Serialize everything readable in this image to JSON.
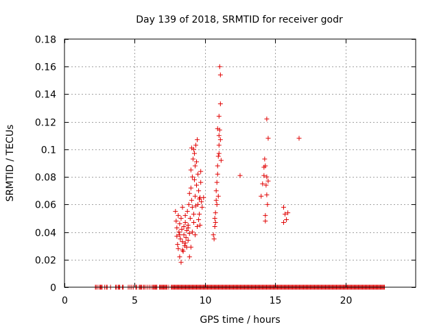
{
  "chart_data": {
    "type": "scatter",
    "title": "Day 139 of 2018, SRMTID for receiver godr",
    "xlabel": "GPS time / hours",
    "ylabel": "SRMTID / TECUs",
    "xlim": [
      0,
      25
    ],
    "ylim": [
      0,
      0.18
    ],
    "xticks": [
      0,
      5,
      10,
      15,
      20
    ],
    "xtick_labels": [
      "0",
      "5",
      "10",
      "15",
      "20"
    ],
    "yticks": [
      0,
      0.02,
      0.04,
      0.06,
      0.08,
      0.1,
      0.12,
      0.14,
      0.16,
      0.18
    ],
    "ytick_labels": [
      "0",
      "0.02",
      "0.04",
      "0.06",
      "0.08",
      "0.1",
      "0.12",
      "0.14",
      "0.16",
      "0.18"
    ],
    "grid": true,
    "marker": "+",
    "color": "#e00000",
    "zero_band": {
      "x_start": 2.2,
      "x_end": 22.8,
      "y": 0
    },
    "series": [
      {
        "name": "SRMTID",
        "points": [
          [
            7.9,
            0.055
          ],
          [
            7.95,
            0.048
          ],
          [
            8.0,
            0.043
          ],
          [
            8.0,
            0.037
          ],
          [
            8.05,
            0.031
          ],
          [
            8.1,
            0.052
          ],
          [
            8.1,
            0.028
          ],
          [
            8.15,
            0.04
          ],
          [
            8.2,
            0.046
          ],
          [
            8.2,
            0.022
          ],
          [
            8.25,
            0.035
          ],
          [
            8.3,
            0.05
          ],
          [
            8.3,
            0.018
          ],
          [
            8.35,
            0.042
          ],
          [
            8.4,
            0.033
          ],
          [
            8.4,
            0.058
          ],
          [
            8.45,
            0.026
          ],
          [
            8.5,
            0.044
          ],
          [
            8.5,
            0.038
          ],
          [
            8.55,
            0.03
          ],
          [
            8.6,
            0.047
          ],
          [
            8.6,
            0.052
          ],
          [
            8.65,
            0.036
          ],
          [
            8.7,
            0.041
          ],
          [
            8.7,
            0.029
          ],
          [
            8.75,
            0.055
          ],
          [
            8.8,
            0.034
          ],
          [
            8.8,
            0.045
          ],
          [
            8.85,
            0.06
          ],
          [
            8.9,
            0.039
          ],
          [
            8.9,
            0.068
          ],
          [
            8.95,
            0.05
          ],
          [
            9.0,
            0.085
          ],
          [
            9.0,
            0.072
          ],
          [
            9.05,
            0.063
          ],
          [
            9.1,
            0.058
          ],
          [
            9.1,
            0.08
          ],
          [
            9.15,
            0.093
          ],
          [
            9.2,
            0.1
          ],
          [
            9.2,
            0.053
          ],
          [
            9.25,
            0.078
          ],
          [
            9.3,
            0.088
          ],
          [
            9.3,
            0.066
          ],
          [
            9.35,
            0.059
          ],
          [
            9.4,
            0.074
          ],
          [
            9.4,
            0.091
          ],
          [
            9.45,
            0.107
          ],
          [
            9.5,
            0.082
          ],
          [
            9.5,
            0.06
          ],
          [
            9.55,
            0.07
          ],
          [
            9.6,
            0.064
          ],
          [
            9.6,
            0.053
          ],
          [
            9.65,
            0.045
          ],
          [
            9.7,
            0.076
          ],
          [
            9.7,
            0.084
          ],
          [
            9.75,
            0.062
          ],
          [
            8.8,
            0.043
          ],
          [
            8.9,
            0.022
          ],
          [
            9.0,
            0.029
          ],
          [
            9.1,
            0.04
          ],
          [
            9.2,
            0.047
          ],
          [
            9.3,
            0.038
          ],
          [
            9.45,
            0.044
          ],
          [
            9.55,
            0.049
          ],
          [
            9.65,
            0.065
          ],
          [
            8.6,
            0.032
          ],
          [
            8.4,
            0.027
          ],
          [
            8.2,
            0.038
          ],
          [
            9.05,
            0.101
          ],
          [
            9.25,
            0.097
          ],
          [
            9.35,
            0.103
          ],
          [
            9.8,
            0.058
          ],
          [
            9.9,
            0.065
          ],
          [
            10.6,
            0.038
          ],
          [
            10.65,
            0.035
          ],
          [
            10.7,
            0.044
          ],
          [
            10.7,
            0.05
          ],
          [
            10.75,
            0.054
          ],
          [
            10.8,
            0.063
          ],
          [
            10.8,
            0.07
          ],
          [
            10.85,
            0.076
          ],
          [
            10.9,
            0.082
          ],
          [
            10.9,
            0.088
          ],
          [
            10.95,
            0.095
          ],
          [
            11.0,
            0.103
          ],
          [
            11.0,
            0.11
          ],
          [
            11.05,
            0.114
          ],
          [
            11.0,
            0.124
          ],
          [
            11.1,
            0.133
          ],
          [
            11.1,
            0.154
          ],
          [
            11.05,
            0.16
          ],
          [
            11.15,
            0.092
          ],
          [
            10.85,
            0.06
          ],
          [
            10.95,
            0.066
          ],
          [
            10.75,
            0.047
          ],
          [
            10.9,
            0.115
          ],
          [
            11.0,
            0.097
          ],
          [
            11.1,
            0.107
          ],
          [
            12.5,
            0.081
          ],
          [
            14.0,
            0.066
          ],
          [
            14.1,
            0.075
          ],
          [
            14.2,
            0.081
          ],
          [
            14.2,
            0.087
          ],
          [
            14.25,
            0.093
          ],
          [
            14.3,
            0.088
          ],
          [
            14.35,
            0.074
          ],
          [
            14.4,
            0.08
          ],
          [
            14.4,
            0.067
          ],
          [
            14.45,
            0.06
          ],
          [
            14.3,
            0.052
          ],
          [
            14.3,
            0.048
          ],
          [
            14.5,
            0.108
          ],
          [
            14.4,
            0.122
          ],
          [
            14.5,
            0.077
          ],
          [
            15.6,
            0.058
          ],
          [
            15.7,
            0.053
          ],
          [
            15.8,
            0.049
          ],
          [
            15.9,
            0.054
          ],
          [
            15.6,
            0.047
          ],
          [
            16.7,
            0.108
          ]
        ]
      }
    ]
  }
}
